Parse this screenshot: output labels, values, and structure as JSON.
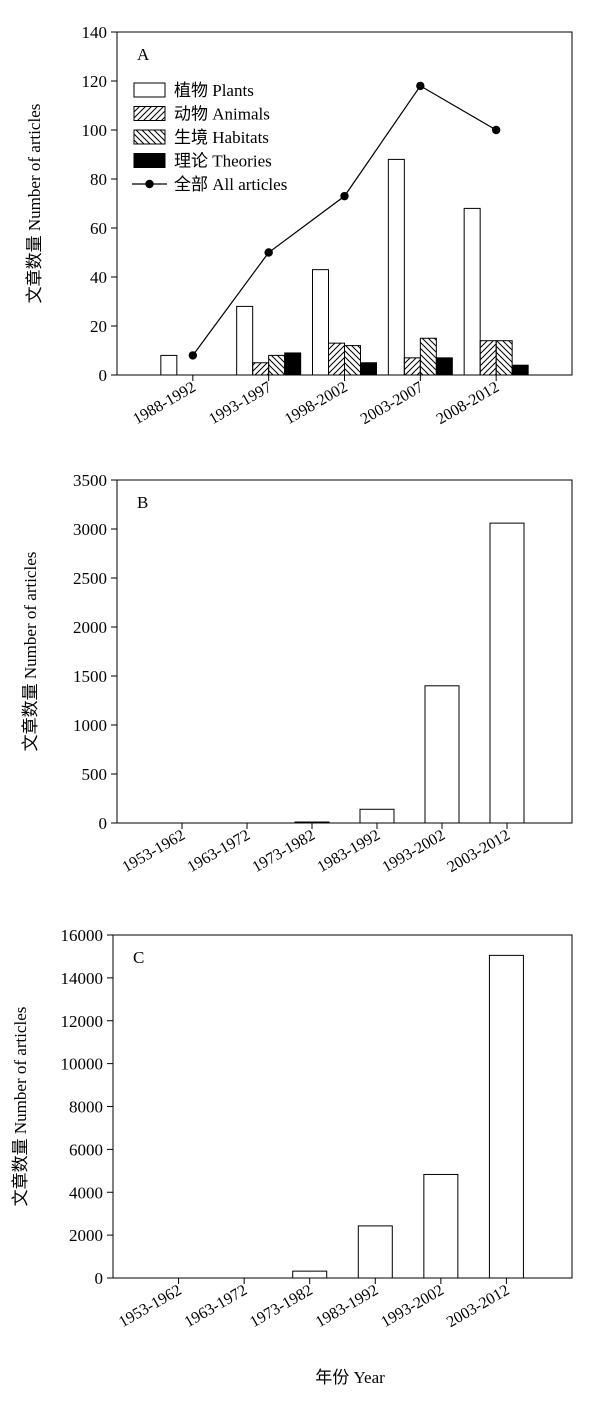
{
  "figure_xlabel": "年份 Year",
  "chart_data": [
    {
      "type": "bar",
      "panel_label": "A",
      "ylabel": "文章数量 Number of articles",
      "ylim": [
        0,
        140
      ],
      "yticks": [
        0,
        20,
        40,
        60,
        80,
        100,
        120,
        140
      ],
      "categories": [
        "1988-1992",
        "1993-1997",
        "1998-2002",
        "2003-2007",
        "2008-2012"
      ],
      "series": [
        {
          "name": "植物 Plants",
          "kind": "bar",
          "pattern": "open",
          "values": [
            8,
            28,
            43,
            88,
            68
          ]
        },
        {
          "name": "动物 Animals",
          "kind": "bar",
          "pattern": "hatch-forward",
          "values": [
            0,
            5,
            13,
            7,
            14
          ]
        },
        {
          "name": "生境 Habitats",
          "kind": "bar",
          "pattern": "hatch-back",
          "values": [
            0,
            8,
            12,
            15,
            14
          ]
        },
        {
          "name": "理论 Theories",
          "kind": "bar",
          "pattern": "solid",
          "values": [
            0,
            9,
            5,
            7,
            4
          ]
        },
        {
          "name": "全部 All articles",
          "kind": "line",
          "values": [
            8,
            50,
            73,
            118,
            100
          ]
        }
      ],
      "legend_position": "top-left"
    },
    {
      "type": "bar",
      "panel_label": "B",
      "ylabel": "文章数量 Number of articles",
      "ylim": [
        0,
        3500
      ],
      "yticks": [
        0,
        500,
        1000,
        1500,
        2000,
        2500,
        3000,
        3500
      ],
      "categories": [
        "1953-1962",
        "1963-1972",
        "1973-1982",
        "1983-1992",
        "1993-2002",
        "2003-2012"
      ],
      "values": [
        0,
        0,
        10,
        140,
        1400,
        3060
      ]
    },
    {
      "type": "bar",
      "panel_label": "C",
      "ylabel": "文章数量 Number of articles",
      "ylim": [
        0,
        16000
      ],
      "yticks": [
        0,
        2000,
        4000,
        6000,
        8000,
        10000,
        12000,
        14000,
        16000
      ],
      "categories": [
        "1953-1962",
        "1963-1972",
        "1973-1982",
        "1983-1992",
        "1993-2002",
        "2003-2012"
      ],
      "values": [
        0,
        0,
        320,
        2430,
        4830,
        15050
      ]
    }
  ]
}
